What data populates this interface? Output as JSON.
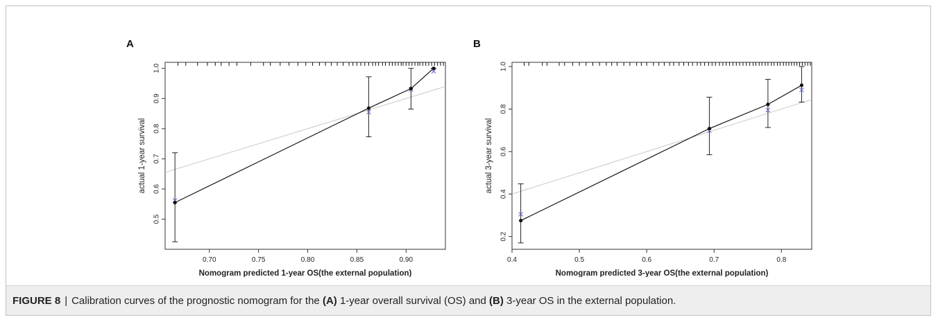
{
  "caption": {
    "label": "FIGURE 8",
    "separator": "|",
    "t1": "Calibration curves of the prognostic nomogram for the",
    "m1": "(A)",
    "t2": "1-year overall survival (OS) and",
    "m2": "(B)",
    "t3": "3-year OS in the external population."
  },
  "chart_data": [
    {
      "type": "line",
      "panel_label": "A",
      "xlabel": "Nomogram predicted 1-year OS(the external population)",
      "ylabel": "actual 1-year survival",
      "xlim": [
        0.655,
        0.94
      ],
      "ylim": [
        0.4,
        1.02
      ],
      "x_ticks": [
        0.7,
        0.75,
        0.8,
        0.85,
        0.9
      ],
      "x_tick_labels": [
        "0.70",
        "0.75",
        "0.80",
        "0.85",
        "0.90"
      ],
      "y_ticks": [
        0.5,
        0.6,
        0.7,
        0.8,
        0.9,
        1.0
      ],
      "y_tick_labels": [
        "0.5",
        "0.6",
        "0.7",
        "0.8",
        "0.9",
        "1.0"
      ],
      "series": [
        {
          "role": "observed",
          "x": [
            0.665,
            0.862,
            0.905,
            0.928
          ],
          "y": [
            0.555,
            0.868,
            0.933,
            1.0
          ],
          "ci_low": [
            0.425,
            0.773,
            0.865,
            1.0
          ],
          "ci_high": [
            0.72,
            0.972,
            1.0,
            1.0
          ]
        },
        {
          "role": "bias-corrected",
          "x": [
            0.665,
            0.862,
            0.905,
            0.928
          ],
          "y": [
            0.562,
            0.855,
            0.93,
            0.99
          ]
        }
      ],
      "reference_line": {
        "from": [
          0.655,
          0.655
        ],
        "to": [
          0.94,
          0.94
        ]
      },
      "rug_x": [
        0.668,
        0.676,
        0.688,
        0.698,
        0.706,
        0.712,
        0.72,
        0.728,
        0.742,
        0.755,
        0.762,
        0.772,
        0.781,
        0.79,
        0.798,
        0.805,
        0.812,
        0.818,
        0.824,
        0.83,
        0.836,
        0.842,
        0.846,
        0.85,
        0.854,
        0.858,
        0.862,
        0.866,
        0.869,
        0.872,
        0.876,
        0.879,
        0.883,
        0.886,
        0.889,
        0.892,
        0.895,
        0.897,
        0.9,
        0.903,
        0.906,
        0.909,
        0.912,
        0.914,
        0.917,
        0.92,
        0.923,
        0.926,
        0.929,
        0.932,
        0.935,
        0.938
      ]
    },
    {
      "type": "line",
      "panel_label": "B",
      "xlabel": "Nomogram predicted 3-year OS(the external population)",
      "ylabel": "actual 3-year survival",
      "xlim": [
        0.4,
        0.845
      ],
      "ylim": [
        0.14,
        1.02
      ],
      "x_ticks": [
        0.4,
        0.5,
        0.6,
        0.7,
        0.8
      ],
      "x_tick_labels": [
        "0.4",
        "0.5",
        "0.6",
        "0.7",
        "0.8"
      ],
      "y_ticks": [
        0.2,
        0.4,
        0.6,
        0.8,
        1.0
      ],
      "y_tick_labels": [
        "0.2",
        "0.4",
        "0.6",
        "0.8",
        "1.0"
      ],
      "series": [
        {
          "role": "observed",
          "x": [
            0.413,
            0.693,
            0.78,
            0.83
          ],
          "y": [
            0.275,
            0.708,
            0.822,
            0.912
          ],
          "ci_low": [
            0.17,
            0.585,
            0.713,
            0.833
          ],
          "ci_high": [
            0.448,
            0.856,
            0.94,
            1.0
          ]
        },
        {
          "role": "bias-corrected",
          "x": [
            0.413,
            0.693,
            0.78,
            0.83
          ],
          "y": [
            0.305,
            0.698,
            0.795,
            0.89
          ]
        }
      ],
      "reference_line": {
        "from": [
          0.4,
          0.4
        ],
        "to": [
          0.845,
          0.845
        ]
      },
      "rug_x": [
        0.418,
        0.425,
        0.445,
        0.452,
        0.47,
        0.478,
        0.49,
        0.5,
        0.51,
        0.52,
        0.53,
        0.54,
        0.548,
        0.556,
        0.566,
        0.575,
        0.585,
        0.592,
        0.6,
        0.61,
        0.618,
        0.626,
        0.634,
        0.64,
        0.648,
        0.655,
        0.662,
        0.668,
        0.675,
        0.68,
        0.686,
        0.692,
        0.697,
        0.702,
        0.708,
        0.713,
        0.718,
        0.723,
        0.728,
        0.733,
        0.738,
        0.743,
        0.748,
        0.753,
        0.758,
        0.762,
        0.767,
        0.771,
        0.776,
        0.78,
        0.785,
        0.789,
        0.794,
        0.798,
        0.803,
        0.807,
        0.811,
        0.815,
        0.819,
        0.823,
        0.827,
        0.831,
        0.835,
        0.839,
        0.843
      ]
    }
  ]
}
